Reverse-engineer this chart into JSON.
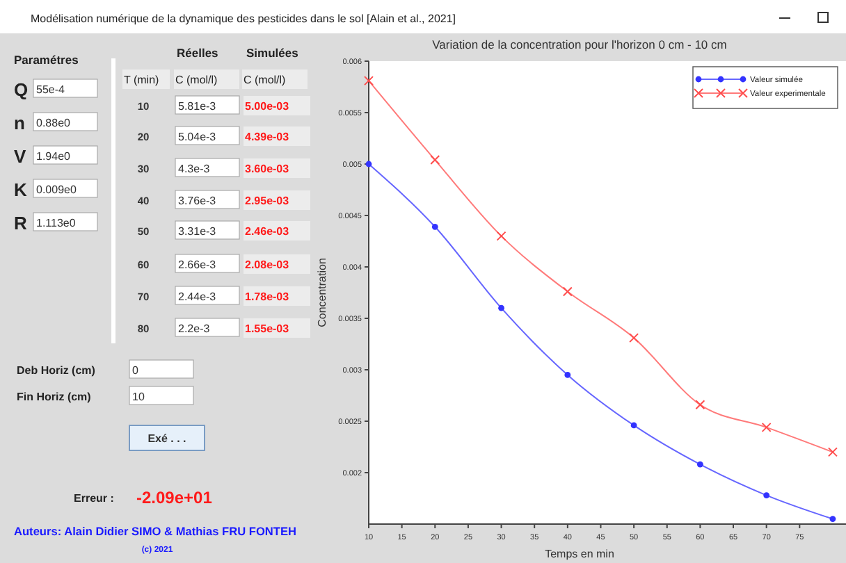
{
  "chart_data": [
    {
      "type": "other",
      "title": "Modélisation numérique de la dynamique des pesticides dans le sol [Alain et al., 2021]",
      "annotations": [
        "Paramétres",
        "Q",
        "55e-4",
        "n",
        "0.88e0",
        "V",
        "1.94e0",
        "K",
        "0.009e0",
        "R",
        "1.113e0",
        "Réelles",
        "Simulées",
        "Deb Horiz (cm)",
        "0",
        "Fin Horiz (cm)",
        "10",
        "Exé . . .",
        "Erreur :",
        "-2.09e+01",
        "Auteurs: Alain Didier SIMO & Mathias FRU FONTEH",
        "(c) 2021"
      ]
    },
    {
      "type": "heatmap",
      "ylabel": "T (min)",
      "categories": [
        "C (mol/l)",
        "C (mol/l)"
      ],
      "y_categories": [
        "10",
        "20",
        "30",
        "40",
        "50",
        "60",
        "70",
        "80"
      ],
      "cells": [
        [
          null,
          null
        ],
        [
          null,
          null
        ],
        [
          null,
          null
        ],
        [
          null,
          null
        ],
        [
          null,
          null
        ],
        [
          null,
          null
        ],
        [
          null,
          null
        ],
        [
          null,
          null
        ]
      ],
      "cell_labels": [
        [
          "5.81e-3",
          "5.00e-03"
        ],
        [
          "5.04e-3",
          "4.39e-03"
        ],
        [
          "4.3e-3",
          "3.60e-03"
        ],
        [
          "3.76e-3",
          "2.95e-03"
        ],
        [
          "3.31e-3",
          "2.46e-03"
        ],
        [
          "2.66e-3",
          "2.08e-03"
        ],
        [
          "2.44e-3",
          "1.78e-03"
        ],
        [
          "2.2e-3",
          "1.55e-03"
        ]
      ]
    },
    {
      "type": "line",
      "title": "Variation de la concentration pour l'horizon 0 cm - 10 cm",
      "xlabel": "Temps en min",
      "ylabel": "Concentration",
      "x": [
        10,
        20,
        30,
        40,
        50,
        60,
        70,
        80
      ],
      "series": [
        {
          "name": "Valeur simulée",
          "color": "#3333ff",
          "marker": "circle",
          "values": [
            0.005,
            0.00439,
            0.0036,
            0.00295,
            0.00246,
            0.00208,
            0.00178,
            0.00155
          ]
        },
        {
          "name": "Valeur experimentale",
          "color": "#ff4d4d",
          "marker": "cross",
          "values": [
            0.00581,
            0.00504,
            0.0043,
            0.00376,
            0.00331,
            0.00266,
            0.00244,
            0.0022
          ]
        }
      ],
      "xlim": [
        10,
        82
      ],
      "xticks": [
        10,
        15,
        20,
        25,
        30,
        35,
        40,
        45,
        50,
        55,
        60,
        65,
        70,
        75
      ],
      "ylim": [
        0.0015,
        0.006
      ],
      "yticks": [
        0.002,
        0.0025,
        0.003,
        0.0035,
        0.004,
        0.0045,
        0.005,
        0.0055,
        0.006
      ],
      "grid": false,
      "legend": "top right"
    }
  ]
}
